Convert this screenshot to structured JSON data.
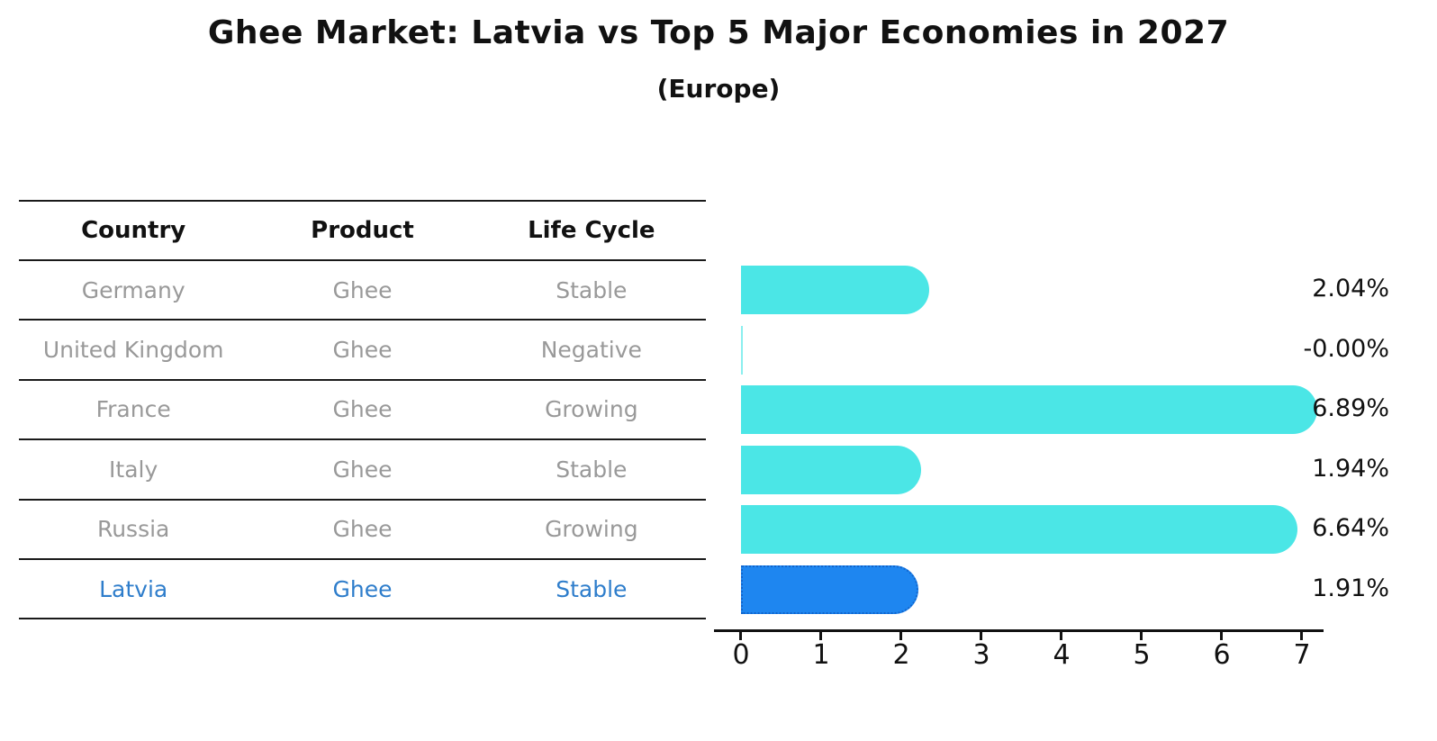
{
  "title": "Ghee Market: Latvia vs Top 5 Major Economies in 2027",
  "subtitle": "(Europe)",
  "table": {
    "headers": [
      "Country",
      "Product",
      "Life Cycle"
    ],
    "rows": [
      {
        "country": "Germany",
        "product": "Ghee",
        "life_cycle": "Stable"
      },
      {
        "country": "United Kingdom",
        "product": "Ghee",
        "life_cycle": "Negative"
      },
      {
        "country": "France",
        "product": "Ghee",
        "life_cycle": "Growing"
      },
      {
        "country": "Italy",
        "product": "Ghee",
        "life_cycle": "Stable"
      },
      {
        "country": "Russia",
        "product": "Ghee",
        "life_cycle": "Growing"
      },
      {
        "country": "Latvia",
        "product": "Ghee",
        "life_cycle": "Stable"
      }
    ],
    "highlight_row": "Latvia"
  },
  "chart_data": {
    "type": "bar",
    "orientation": "horizontal",
    "title": "Ghee Market: Latvia vs Top 5 Major Economies in 2027 (Europe)",
    "categories": [
      "Germany",
      "United Kingdom",
      "France",
      "Italy",
      "Russia",
      "Latvia"
    ],
    "values": [
      2.04,
      -0.0,
      6.89,
      1.94,
      6.64,
      1.91
    ],
    "value_labels": [
      "2.04%",
      "-0.00%",
      "6.89%",
      "1.94%",
      "6.64%",
      "1.91%"
    ],
    "x_ticks": [
      0,
      1,
      2,
      3,
      4,
      5,
      6,
      7
    ],
    "xlim": [
      -0.33,
      7.25
    ],
    "grid": false,
    "legend": false,
    "highlight_index": 5
  },
  "colors": {
    "bar_color": "#4BE6E6",
    "highlight_bar_color": "#1E86F0",
    "highlight_bar_border": "#1265CC",
    "highlight_text": "#2e7dcb",
    "row_text": "#999999",
    "header_text": "#111111",
    "axis": "#111111"
  }
}
